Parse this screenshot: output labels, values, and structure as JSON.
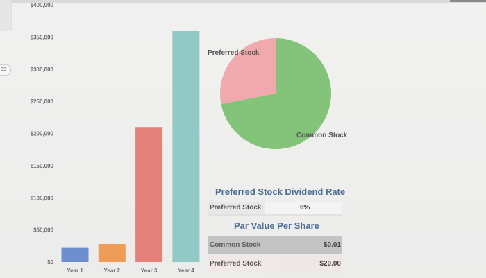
{
  "chart_data": [
    {
      "type": "bar",
      "categories": [
        "Year 1",
        "Year 2",
        "Year 3",
        "Year 4"
      ],
      "values": [
        22000,
        28000,
        210000,
        360000
      ],
      "colors": [
        "#6d8fd0",
        "#ee9c56",
        "#e5817b",
        "#93c9c4"
      ],
      "yticks": [
        "$0",
        "$50,000",
        "$100,000",
        "$150,000",
        "$200,000",
        "$250,000",
        "$300,000",
        "$350,000",
        "$400,000"
      ],
      "ylim": [
        0,
        400000
      ],
      "grid": false
    },
    {
      "type": "pie",
      "labels": [
        "Preferred Stock",
        "Common Stock"
      ],
      "values": [
        28,
        72
      ],
      "colors": [
        "#f0a9ad",
        "#84c47a"
      ]
    }
  ],
  "left_badge": "33",
  "dividend": {
    "title": "Preferred Stock Dividend Rate",
    "label": "Preferred Stock",
    "value": "6%"
  },
  "par": {
    "title": "Par Value Per Share",
    "rows": [
      {
        "label": "Common Stock",
        "value": "$0.01"
      },
      {
        "label": "Preferred Stock",
        "value": "$20.00"
      }
    ]
  }
}
